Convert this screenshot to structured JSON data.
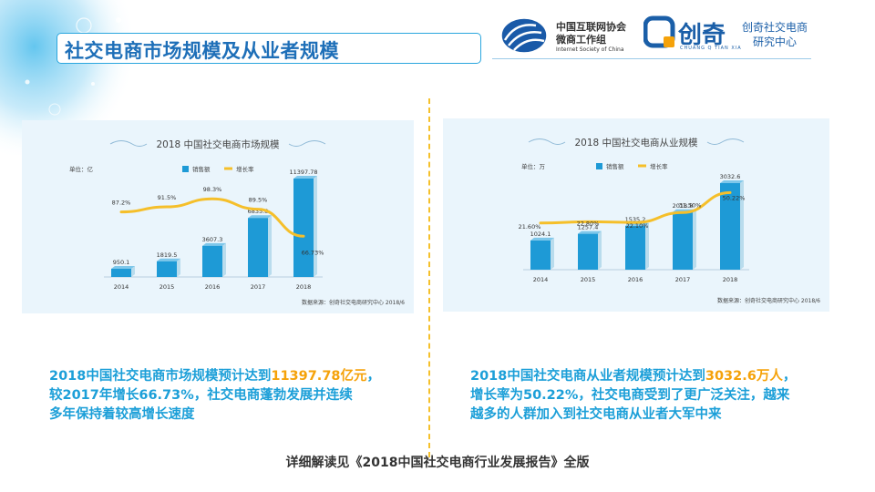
{
  "title": "社交电商市场规模及从业者规模",
  "logos": {
    "isc_cn_line1": "中国互联网协会",
    "isc_cn_line2": "微商工作组",
    "isc_en": "Internet Society of China",
    "chuangqi_name": "创奇",
    "chuangqi_pinyin": "CHUANG Q TIAN XIA",
    "research_line1": "创奇社交电商",
    "research_line2": "研究中心"
  },
  "colors": {
    "bar": "#1e9ad6",
    "line": "#f5bf2a",
    "title": "#1e6fb8",
    "highlight": "#f5a20a",
    "text": "#1c9fd8"
  },
  "chart_data": [
    {
      "type": "bar",
      "title": "2018 中国社交电商市场规模",
      "unit_label": "单位：亿",
      "categories": [
        "2014",
        "2015",
        "2016",
        "2017",
        "2018"
      ],
      "series": [
        {
          "name": "销售额",
          "type": "bar",
          "values": [
            950.1,
            1819.5,
            3607.3,
            6835.8,
            11397.78
          ],
          "labels": [
            "950.1",
            "1819.5",
            "3607.3",
            "6835.8",
            "11397.78"
          ]
        },
        {
          "name": "增长率",
          "type": "line",
          "values": [
            87.2,
            91.5,
            98.3,
            89.5,
            66.73
          ],
          "labels": [
            "87.2%",
            "91.5%",
            "98.3%",
            "89.5%",
            "66.73%"
          ]
        }
      ],
      "bar_max": 11397.78,
      "line_range": [
        60,
        100
      ],
      "source": "数据来源：创奇社交电商研究中心 2018/6"
    },
    {
      "type": "bar",
      "title": "2018 中国社交电商从业规模",
      "unit_label": "单位：万",
      "categories": [
        "2014",
        "2015",
        "2016",
        "2017",
        "2018"
      ],
      "series": [
        {
          "name": "销售额",
          "type": "bar",
          "values": [
            1024.1,
            1257.4,
            1535.2,
            2018.8,
            3032.6
          ],
          "labels": [
            "1024.1",
            "1257.4",
            "1535.2",
            "2018.8",
            "3032.6"
          ]
        },
        {
          "name": "增长率",
          "type": "line",
          "values": [
            21.6,
            22.8,
            22.1,
            31.5,
            50.22
          ],
          "labels": [
            "21.60%",
            "22.80%",
            "22.10%",
            "31.50%",
            "50.22%"
          ]
        }
      ],
      "bar_max": 3032.6,
      "line_range": [
        0,
        60
      ],
      "source": "数据来源：创奇社交电商研究中心 2018/6"
    }
  ],
  "desc_left": {
    "line1_prefix": "2018中国社交电商市场规模预计达到",
    "line1_highlight": "11397.78亿元",
    "line1_suffix": "，",
    "line2": "较2017年增长66.73%，社交电商蓬勃发展并连续",
    "line3": "多年保持着较高增长速度"
  },
  "desc_right": {
    "line1_prefix": "2018中国社交电商从业者规模预计达到",
    "line1_highlight": "3032.6万人",
    "line1_suffix": "，",
    "line2": "增长率为50.22%，社交电商受到了更广泛关注，越来",
    "line3": "越多的人群加入到社交电商从业者大军中来"
  },
  "footer": "详细解读见《2018中国社交电商行业发展报告》全版"
}
